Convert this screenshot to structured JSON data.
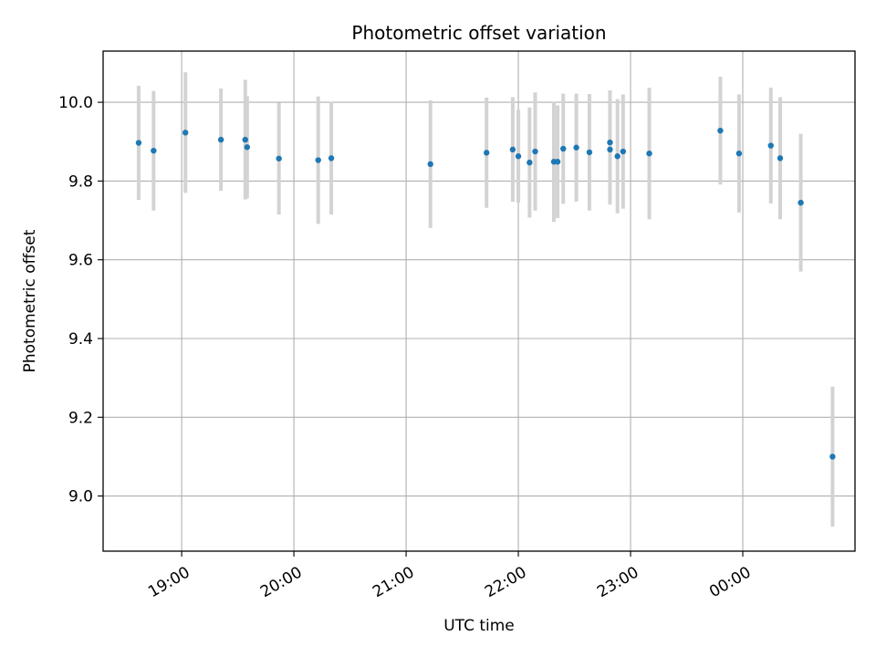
{
  "chart_data": {
    "type": "scatter",
    "title": "Photometric offset variation",
    "xlabel": "UTC time",
    "ylabel": "Photometric offset",
    "grid": true,
    "x_ticks": [
      "19:00",
      "20:00",
      "21:00",
      "22:00",
      "23:00",
      "00:00"
    ],
    "y_ticks": [
      "9.0",
      "9.2",
      "9.4",
      "9.6",
      "9.8",
      "10.0"
    ],
    "xlim": [
      "18:18",
      "01:00"
    ],
    "ylim": [
      8.86,
      10.13
    ],
    "colors": {
      "point": "#1f77b4",
      "errorbar": "#d3d3d3",
      "grid": "#b0b0b0"
    },
    "series": [
      {
        "points": [
          {
            "x": "18:37",
            "y": 9.897,
            "yerr": 0.145
          },
          {
            "x": "18:45",
            "y": 9.877,
            "yerr": 0.152
          },
          {
            "x": "19:02",
            "y": 9.923,
            "yerr": 0.153
          },
          {
            "x": "19:21",
            "y": 9.905,
            "yerr": 0.13
          },
          {
            "x": "19:34",
            "y": 9.905,
            "yerr": 0.152
          },
          {
            "x": "19:35",
            "y": 9.886,
            "yerr": 0.13
          },
          {
            "x": "19:52",
            "y": 9.857,
            "yerr": 0.142
          },
          {
            "x": "20:13",
            "y": 9.853,
            "yerr": 0.162
          },
          {
            "x": "20:20",
            "y": 9.858,
            "yerr": 0.143
          },
          {
            "x": "21:13",
            "y": 9.843,
            "yerr": 0.162
          },
          {
            "x": "21:43",
            "y": 9.872,
            "yerr": 0.14
          },
          {
            "x": "21:57",
            "y": 9.88,
            "yerr": 0.133
          },
          {
            "x": "22:00",
            "y": 9.863,
            "yerr": 0.118
          },
          {
            "x": "22:06",
            "y": 9.847,
            "yerr": 0.14
          },
          {
            "x": "22:09",
            "y": 9.875,
            "yerr": 0.15
          },
          {
            "x": "22:19",
            "y": 9.849,
            "yerr": 0.153
          },
          {
            "x": "22:21",
            "y": 9.849,
            "yerr": 0.143
          },
          {
            "x": "22:24",
            "y": 9.882,
            "yerr": 0.14
          },
          {
            "x": "22:31",
            "y": 9.885,
            "yerr": 0.137
          },
          {
            "x": "22:38",
            "y": 9.873,
            "yerr": 0.148
          },
          {
            "x": "22:49",
            "y": 9.898,
            "yerr": 0.132
          },
          {
            "x": "22:49",
            "y": 9.88,
            "yerr": 0.14
          },
          {
            "x": "22:53",
            "y": 9.863,
            "yerr": 0.145
          },
          {
            "x": "22:56",
            "y": 9.875,
            "yerr": 0.145
          },
          {
            "x": "23:10",
            "y": 9.87,
            "yerr": 0.167
          },
          {
            "x": "23:48",
            "y": 9.928,
            "yerr": 0.137
          },
          {
            "x": "23:58",
            "y": 9.87,
            "yerr": 0.15
          },
          {
            "x": "00:15",
            "y": 9.89,
            "yerr": 0.147
          },
          {
            "x": "00:20",
            "y": 9.858,
            "yerr": 0.155
          },
          {
            "x": "00:31",
            "y": 9.745,
            "yerr": 0.175
          },
          {
            "x": "00:48",
            "y": 9.1,
            "yerr": 0.178
          }
        ]
      }
    ]
  }
}
